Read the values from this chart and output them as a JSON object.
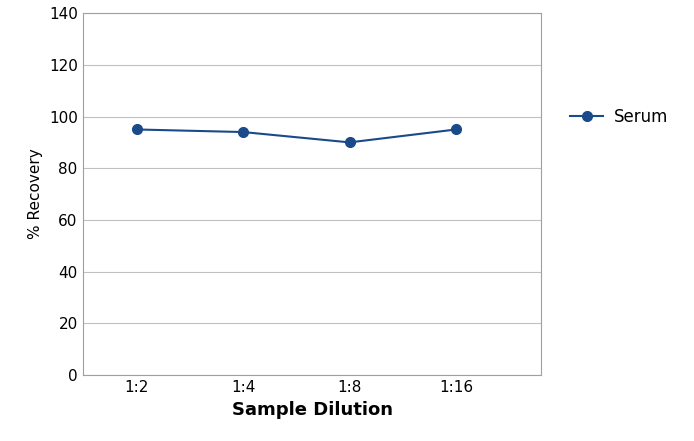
{
  "x_labels": [
    "1:2",
    "1:4",
    "1:8",
    "1:16"
  ],
  "x_values": [
    1,
    2,
    3,
    4
  ],
  "y_values": [
    95,
    94,
    90,
    95
  ],
  "line_color": "#1a4a8a",
  "marker": "o",
  "marker_size": 7,
  "marker_facecolor": "#1a4a8a",
  "line_width": 1.5,
  "ylabel": "% Recovery",
  "xlabel": "Sample Dilution",
  "ylim": [
    0,
    140
  ],
  "yticks": [
    0,
    20,
    40,
    60,
    80,
    100,
    120,
    140
  ],
  "legend_label": "Serum",
  "background_color": "#ffffff",
  "grid_color": "#c0c0c0",
  "spine_color": "#a0a0a0",
  "ylabel_fontsize": 11,
  "xlabel_fontsize": 13,
  "tick_fontsize": 11,
  "legend_fontsize": 12,
  "xlim": [
    0.5,
    4.8
  ]
}
